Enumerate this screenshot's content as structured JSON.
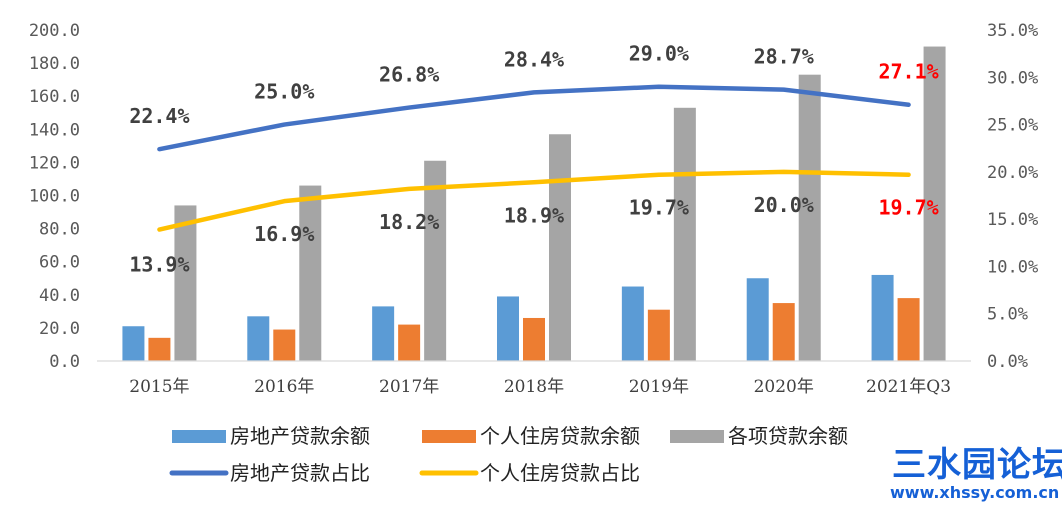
{
  "chart_data": {
    "type": "bar+line",
    "categories": [
      "2015年",
      "2016年",
      "2017年",
      "2018年",
      "2019年",
      "2020年",
      "2021年Q3"
    ],
    "left_axis": {
      "ticks": [
        "0.0",
        "20.0",
        "40.0",
        "60.0",
        "80.0",
        "100.0",
        "120.0",
        "140.0",
        "160.0",
        "180.0",
        "200.0"
      ],
      "range": [
        0,
        200
      ]
    },
    "right_axis": {
      "ticks": [
        "0.0%",
        "5.0%",
        "10.0%",
        "15.0%",
        "20.0%",
        "25.0%",
        "30.0%",
        "35.0%"
      ],
      "range": [
        0,
        35
      ]
    },
    "bar_series": [
      {
        "name": "房地产贷款余额",
        "color": "#5b9bd5",
        "values": [
          21,
          27,
          33,
          39,
          45,
          50,
          52
        ]
      },
      {
        "name": "个人住房贷款余额",
        "color": "#ed7d31",
        "values": [
          14,
          19,
          22,
          26,
          31,
          35,
          38
        ]
      },
      {
        "name": "各项贷款余额",
        "color": "#a5a5a5",
        "values": [
          94,
          106,
          121,
          137,
          153,
          173,
          190
        ]
      }
    ],
    "line_series": [
      {
        "name": "房地产贷款占比",
        "color": "#4472c4",
        "values": [
          22.4,
          25.0,
          26.8,
          28.4,
          29.0,
          28.7,
          27.1
        ],
        "labels": [
          "22.4%",
          "25.0%",
          "26.8%",
          "28.4%",
          "29.0%",
          "28.7%",
          "27.1%"
        ]
      },
      {
        "name": "个人住房贷款占比",
        "color": "#ffc000",
        "values": [
          13.9,
          16.9,
          18.2,
          18.9,
          19.7,
          20.0,
          19.7
        ],
        "labels": [
          "13.9%",
          "16.9%",
          "18.2%",
          "18.9%",
          "19.7%",
          "20.0%",
          "19.7%"
        ]
      }
    ],
    "highlight_color": "#ff0000",
    "legend_position": "bottom",
    "grid": false
  },
  "watermark": {
    "title": "三水园论坛",
    "url": "www.xhssy.com.cn"
  }
}
